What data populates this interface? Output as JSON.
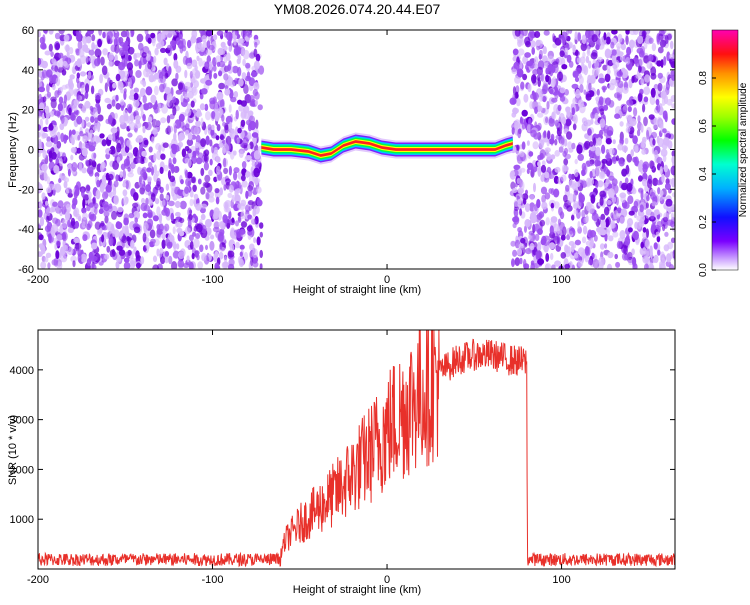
{
  "page_title": "YM08.2026.074.20.44.E07",
  "colors": {
    "trace": "#e8302a",
    "speckle_dark": "#6a00d8",
    "speckle_mid": "#9b4cf0",
    "speckle_light": "#d7b8fb"
  },
  "chart_data": [
    {
      "type": "heatmap",
      "title": "YM08.2026.074.20.44.E07",
      "xlabel": "Height of straight line (km)",
      "ylabel": "Frequency (Hz)",
      "xlim": [
        -200,
        165
      ],
      "ylim": [
        -60,
        60
      ],
      "x_ticks": [
        "-200",
        "-100",
        "0",
        "100"
      ],
      "y_ticks": [
        "-60",
        "-40",
        "-20",
        "0",
        "20",
        "40",
        "60"
      ],
      "noise_regions": [
        [
          -200,
          -72
        ],
        [
          72,
          165
        ]
      ],
      "signal_band": {
        "x": [
          -72,
          -65,
          -55,
          -45,
          -38,
          -32,
          -25,
          -18,
          -10,
          -3,
          5,
          15,
          30,
          50,
          62,
          68,
          72
        ],
        "freq": [
          1,
          0,
          0,
          -1,
          -3,
          -2,
          2,
          4,
          3,
          1,
          0,
          0,
          0,
          0,
          0,
          2,
          3
        ]
      },
      "colorbar": {
        "label": "Normalized spectral amplitude",
        "range": [
          0,
          1
        ],
        "ticks": [
          "0.0",
          "0.2",
          "0.4",
          "0.6",
          "0.8"
        ]
      }
    },
    {
      "type": "line",
      "xlabel": "Height of straight line (km)",
      "ylabel": "SNR (10 * v/v)",
      "xlim": [
        -200,
        165
      ],
      "ylim": [
        0,
        4800
      ],
      "x_ticks": [
        "-200",
        "-100",
        "0",
        "100"
      ],
      "y_ticks": [
        "1000",
        "2000",
        "3000",
        "4000"
      ],
      "series": [
        {
          "name": "SNR",
          "x": [
            -200,
            -62,
            -58,
            -50,
            -40,
            -30,
            -20,
            -10,
            0,
            10,
            20,
            30,
            40,
            50,
            60,
            70,
            80,
            80.5,
            165
          ],
          "y": [
            200,
            200,
            600,
            900,
            1200,
            1500,
            1900,
            2300,
            2800,
            3200,
            3600,
            3950,
            4200,
            4300,
            4300,
            4200,
            4150,
            200,
            200
          ]
        }
      ]
    }
  ]
}
